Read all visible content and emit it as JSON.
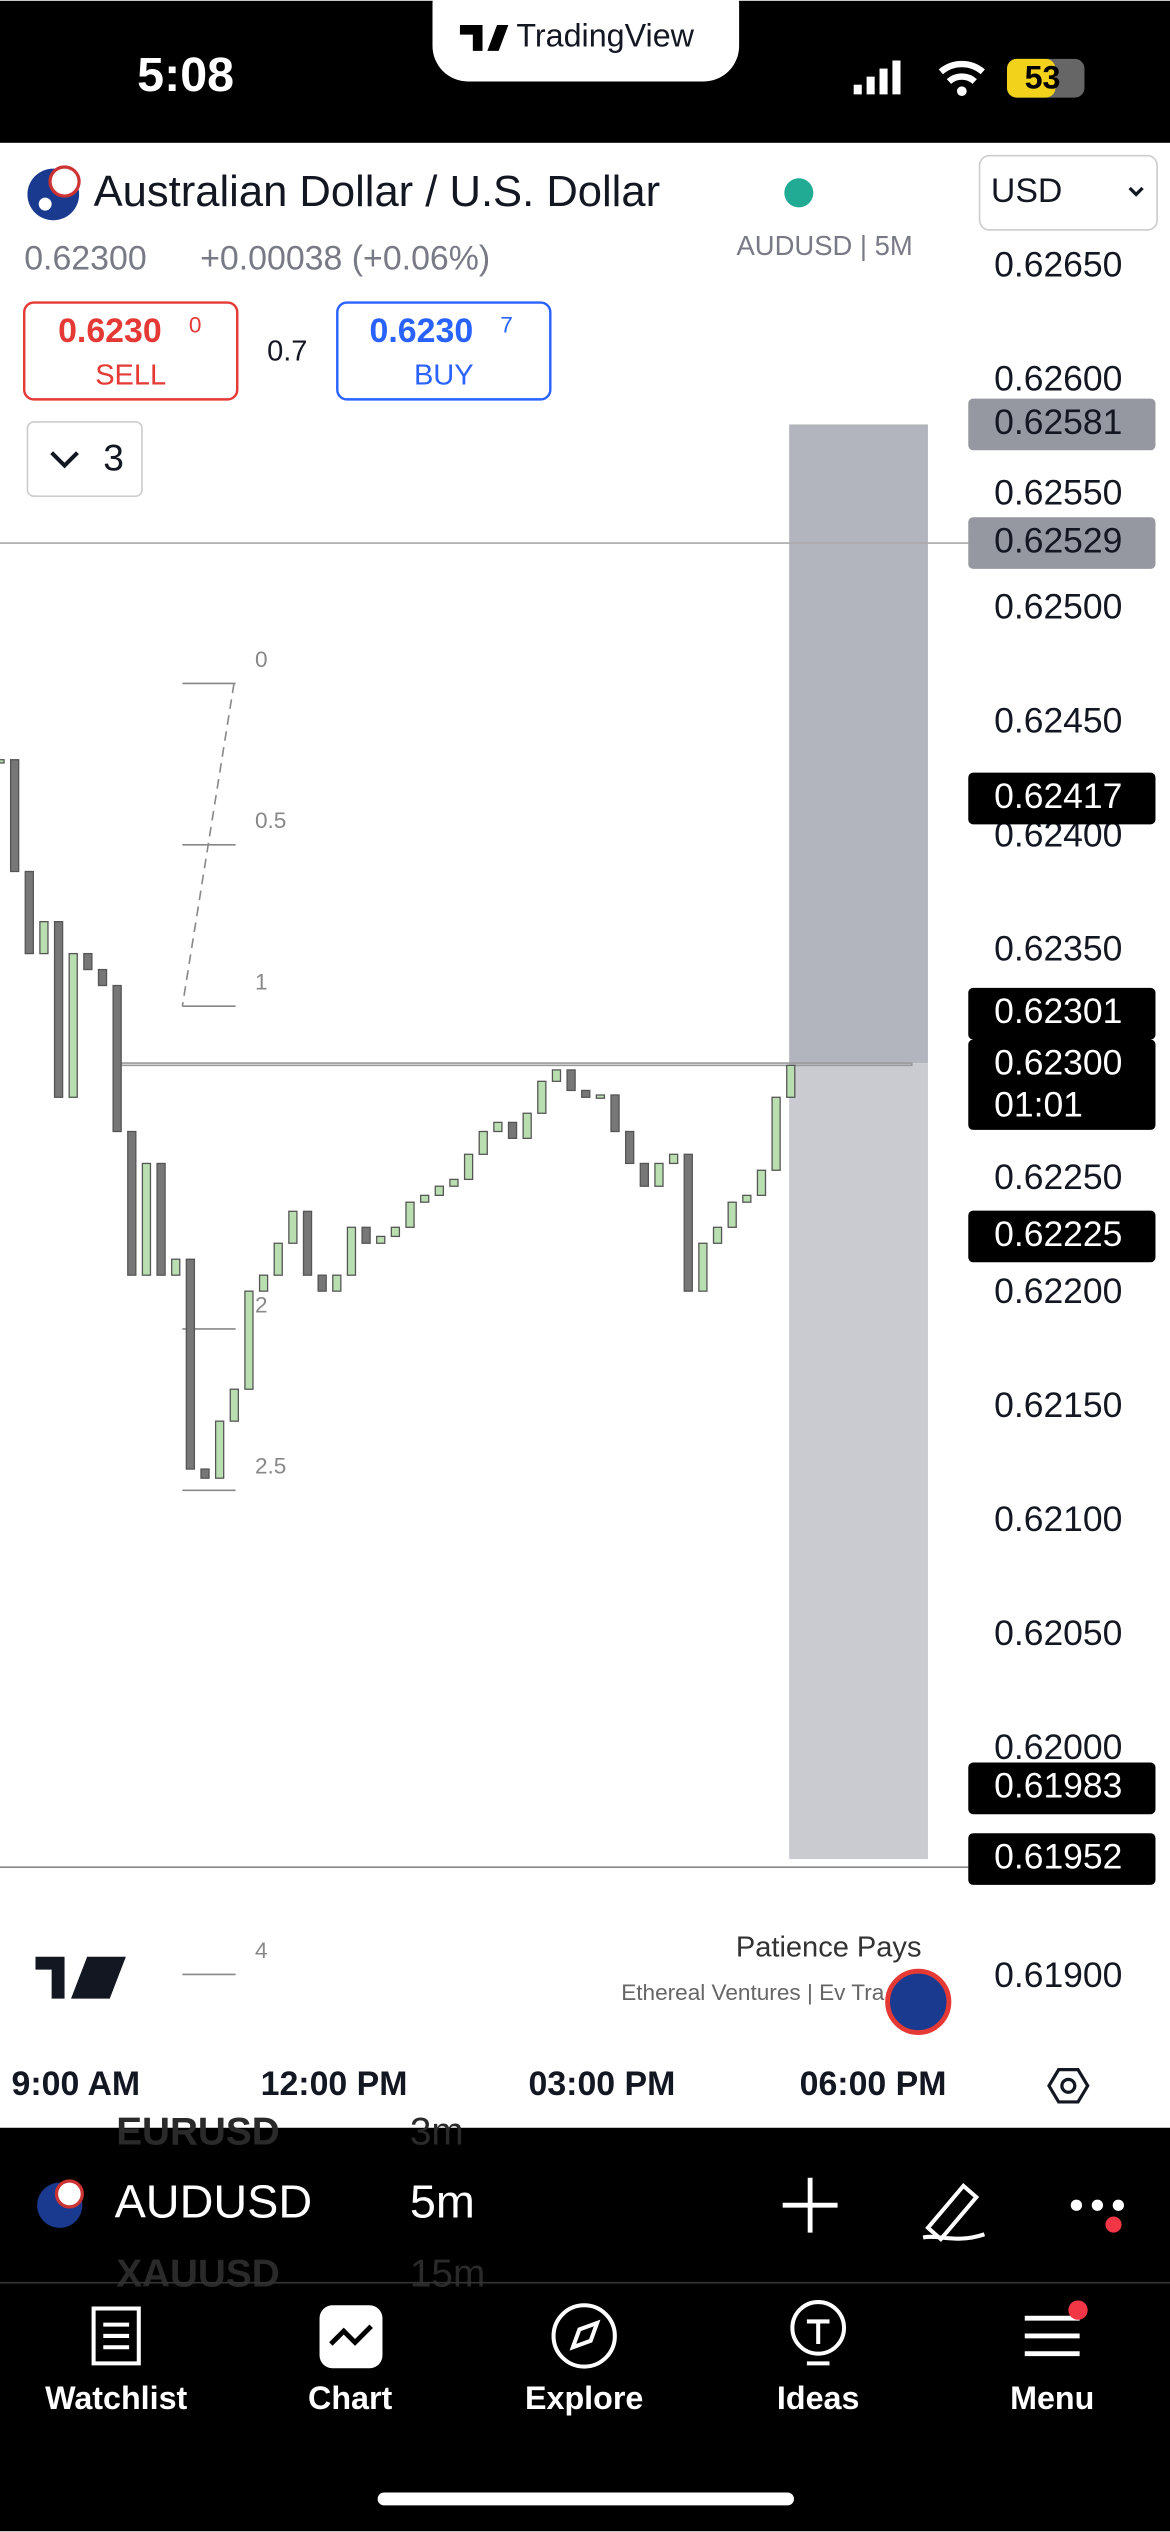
{
  "status_bar": {
    "time": "5:08",
    "app": "TradingView",
    "battery": "53"
  },
  "header": {
    "title": "Australian Dollar / U.S. Dollar",
    "symbol_interval": "AUDUSD | 5M",
    "quote": "0.62300",
    "change": "+0.00038 (+0.06%)",
    "currency": "USD"
  },
  "trade": {
    "sell_price": "0.6230",
    "sell_price_sup": "0",
    "sell_label": "SELL",
    "spread": "0.7",
    "buy_price": "0.6230",
    "buy_price_sup": "7",
    "buy_label": "BUY"
  },
  "indicators_toggle": "3",
  "chart": {
    "type": "candlestick",
    "ylim": [
      0.619,
      0.6265
    ],
    "yticks": [
      {
        "value": 0.6265,
        "label": "0.62650"
      },
      {
        "value": 0.626,
        "label": "0.62600"
      },
      {
        "value": 0.6255,
        "label": "0.62550"
      },
      {
        "value": 0.625,
        "label": "0.62500"
      },
      {
        "value": 0.6245,
        "label": "0.62450"
      },
      {
        "value": 0.624,
        "label": "0.62400"
      },
      {
        "value": 0.6235,
        "label": "0.62350"
      },
      {
        "value": 0.623,
        "label": "0.62300"
      },
      {
        "value": 0.6225,
        "label": "0.62250"
      },
      {
        "value": 0.622,
        "label": "0.62200"
      },
      {
        "value": 0.6215,
        "label": "0.62150"
      },
      {
        "value": 0.621,
        "label": "0.62100"
      },
      {
        "value": 0.6205,
        "label": "0.62050"
      },
      {
        "value": 0.62,
        "label": "0.62000"
      },
      {
        "value": 0.6195,
        "label": "0.61950"
      },
      {
        "value": 0.619,
        "label": "0.61900"
      }
    ],
    "closes": [
      0.62434,
      0.62385,
      0.62349,
      0.62363,
      0.62286,
      0.62349,
      0.62342,
      0.62335,
      0.62271,
      0.62208,
      0.62257,
      0.62208,
      0.62215,
      0.62123,
      0.62119,
      0.62144,
      0.62158,
      0.62201,
      0.62208,
      0.62222,
      0.62236,
      0.62208,
      0.62201,
      0.62208,
      0.62229,
      0.62222,
      0.62225,
      0.62229,
      0.6224,
      0.62243,
      0.62247,
      0.6225,
      0.62261,
      0.62271,
      0.62275,
      0.62268,
      0.62279,
      0.62293,
      0.62298,
      0.62289,
      0.62286,
      0.62287,
      0.62271,
      0.62257,
      0.62247,
      0.62257,
      0.62261,
      0.62201,
      0.62222,
      0.62229,
      0.6224,
      0.62243,
      0.62254,
      0.62286,
      0.623
    ],
    "price_tags": [
      {
        "value": 0.62581,
        "label": "0.62581",
        "style": "grey"
      },
      {
        "value": 0.62529,
        "label": "0.62529",
        "style": "grey"
      },
      {
        "value": 0.62417,
        "label": "0.62417",
        "style": "black"
      },
      {
        "value": 0.62301,
        "label": "0.62301",
        "style": "black"
      },
      {
        "value": 0.623,
        "label": "0.62300",
        "style": "black",
        "countdown": "01:01"
      },
      {
        "value": 0.62225,
        "label": "0.62225",
        "style": "black"
      },
      {
        "value": 0.61983,
        "label": "0.61983",
        "style": "black"
      },
      {
        "value": 0.61952,
        "label": "0.61952",
        "style": "black"
      }
    ],
    "fib_levels": [
      0,
      0.5,
      1,
      2,
      2.5,
      4
    ],
    "time_labels": [
      "9:00 AM",
      "12:00 PM",
      "03:00 PM",
      "06:00 PM"
    ],
    "watermark": {
      "title": "Patience Pays",
      "subtitle": "Ethereal Ventures | Ev Tra"
    }
  },
  "symbol_bar": {
    "symbol": "AUDUSD",
    "interval": "5m",
    "prev_symbol": "EURUSD",
    "prev_interval": "3m",
    "next_symbol": "XAUUSD",
    "next_interval": "15m"
  },
  "nav": [
    "Watchlist",
    "Chart",
    "Explore",
    "Ideas",
    "Menu"
  ]
}
